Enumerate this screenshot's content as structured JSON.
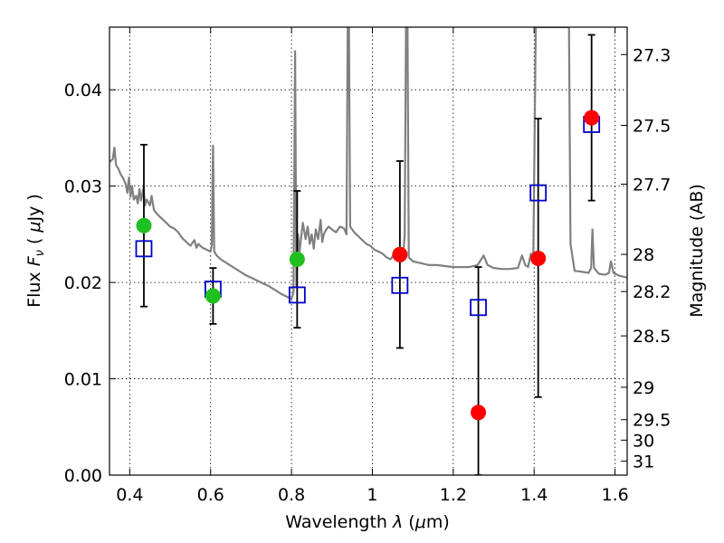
{
  "chart_data": {
    "type": "scatter",
    "xlabel": {
      "text": "Wavelength",
      "symbol": "λ",
      "unit_open": " (",
      "unit_mu": "μ",
      "unit_rest": "m)"
    },
    "ylabel": {
      "text": "Flux",
      "symbol": "F",
      "subscript": "ν",
      "unit_open": "(",
      "unit_mu": "μ",
      "unit_rest": "Jy )"
    },
    "y2label": "Magnitude (AB)",
    "xlim": [
      0.35,
      1.63
    ],
    "ylim": [
      0.0,
      0.0465
    ],
    "grid": true,
    "x_ticks": [
      {
        "value": 0.4,
        "label": "0.4"
      },
      {
        "value": 0.6,
        "label": "0.6"
      },
      {
        "value": 0.8,
        "label": "0.8"
      },
      {
        "value": 1.0,
        "label": "1"
      },
      {
        "value": 1.2,
        "label": "1.2"
      },
      {
        "value": 1.4,
        "label": "1.4"
      },
      {
        "value": 1.6,
        "label": "1.6"
      }
    ],
    "y_ticks": [
      {
        "value": 0.0,
        "label": "0.00"
      },
      {
        "value": 0.01,
        "label": "0.01"
      },
      {
        "value": 0.02,
        "label": "0.02"
      },
      {
        "value": 0.03,
        "label": "0.03"
      },
      {
        "value": 0.04,
        "label": "0.04"
      }
    ],
    "mag_ticks": [
      {
        "value": 27.3,
        "label": "27.3"
      },
      {
        "value": 27.5,
        "label": "27.5"
      },
      {
        "value": 27.7,
        "label": "27.7"
      },
      {
        "value": 28,
        "label": "28"
      },
      {
        "value": 28.2,
        "label": "28.2"
      },
      {
        "value": 28.5,
        "label": "28.5"
      },
      {
        "value": 29,
        "label": "29"
      },
      {
        "value": 29.5,
        "label": "29.5"
      },
      {
        "value": 30,
        "label": "30"
      },
      {
        "value": 31,
        "label": "31"
      }
    ],
    "model_spectrum": {
      "color": "#808080",
      "points": [
        [
          0.35,
          0.0325
        ],
        [
          0.358,
          0.0328
        ],
        [
          0.362,
          0.034
        ],
        [
          0.366,
          0.0322
        ],
        [
          0.372,
          0.0318
        ],
        [
          0.378,
          0.0312
        ],
        [
          0.384,
          0.0308
        ],
        [
          0.39,
          0.0302
        ],
        [
          0.394,
          0.0293
        ],
        [
          0.398,
          0.0309
        ],
        [
          0.402,
          0.0289
        ],
        [
          0.406,
          0.03
        ],
        [
          0.41,
          0.0286
        ],
        [
          0.416,
          0.029
        ],
        [
          0.42,
          0.0282
        ],
        [
          0.424,
          0.0297
        ],
        [
          0.428,
          0.0285
        ],
        [
          0.434,
          0.0298
        ],
        [
          0.438,
          0.028
        ],
        [
          0.442,
          0.0286
        ],
        [
          0.45,
          0.028
        ],
        [
          0.454,
          0.029
        ],
        [
          0.46,
          0.0275
        ],
        [
          0.47,
          0.027
        ],
        [
          0.48,
          0.0266
        ],
        [
          0.49,
          0.0262
        ],
        [
          0.5,
          0.0258
        ],
        [
          0.51,
          0.0256
        ],
        [
          0.52,
          0.0252
        ],
        [
          0.53,
          0.0246
        ],
        [
          0.54,
          0.0242
        ],
        [
          0.55,
          0.0238
        ],
        [
          0.56,
          0.0244
        ],
        [
          0.565,
          0.0236
        ],
        [
          0.57,
          0.024
        ],
        [
          0.58,
          0.0236
        ],
        [
          0.59,
          0.0234
        ],
        [
          0.6,
          0.0232
        ],
        [
          0.603,
          0.024
        ],
        [
          0.606,
          0.0342
        ],
        [
          0.609,
          0.0232
        ],
        [
          0.615,
          0.0228
        ],
        [
          0.625,
          0.0224
        ],
        [
          0.64,
          0.022
        ],
        [
          0.655,
          0.0216
        ],
        [
          0.67,
          0.0212
        ],
        [
          0.685,
          0.0208
        ],
        [
          0.7,
          0.0205
        ],
        [
          0.715,
          0.0202
        ],
        [
          0.73,
          0.0199
        ],
        [
          0.745,
          0.0196
        ],
        [
          0.76,
          0.0192
        ],
        [
          0.775,
          0.0188
        ],
        [
          0.79,
          0.0185
        ],
        [
          0.8,
          0.0183
        ],
        [
          0.805,
          0.019
        ],
        [
          0.809,
          0.044
        ],
        [
          0.812,
          0.0195
        ],
        [
          0.816,
          0.025
        ],
        [
          0.82,
          0.0232
        ],
        [
          0.828,
          0.0262
        ],
        [
          0.835,
          0.0245
        ],
        [
          0.84,
          0.0258
        ],
        [
          0.845,
          0.024
        ],
        [
          0.85,
          0.025
        ],
        [
          0.855,
          0.0235
        ],
        [
          0.86,
          0.0255
        ],
        [
          0.866,
          0.0245
        ],
        [
          0.872,
          0.0265
        ],
        [
          0.876,
          0.0242
        ],
        [
          0.88,
          0.025
        ],
        [
          0.886,
          0.0255
        ],
        [
          0.892,
          0.0258
        ],
        [
          0.9,
          0.0255
        ],
        [
          0.91,
          0.0252
        ],
        [
          0.92,
          0.0258
        ],
        [
          0.93,
          0.0256
        ],
        [
          0.936,
          0.025
        ],
        [
          0.939,
          0.0465
        ],
        [
          0.942,
          0.0465
        ],
        [
          0.945,
          0.0258
        ],
        [
          0.955,
          0.0252
        ],
        [
          0.965,
          0.0248
        ],
        [
          0.975,
          0.0244
        ],
        [
          0.985,
          0.024
        ],
        [
          0.995,
          0.0238
        ],
        [
          1.005,
          0.0234
        ],
        [
          1.015,
          0.0232
        ],
        [
          1.025,
          0.023
        ],
        [
          1.035,
          0.0226
        ],
        [
          1.045,
          0.0224
        ],
        [
          1.055,
          0.023
        ],
        [
          1.065,
          0.0222
        ],
        [
          1.075,
          0.0222
        ],
        [
          1.08,
          0.025
        ],
        [
          1.083,
          0.0465
        ],
        [
          1.087,
          0.0465
        ],
        [
          1.09,
          0.0226
        ],
        [
          1.1,
          0.0222
        ],
        [
          1.12,
          0.022
        ],
        [
          1.14,
          0.0218
        ],
        [
          1.16,
          0.0218
        ],
        [
          1.18,
          0.0217
        ],
        [
          1.2,
          0.0216
        ],
        [
          1.22,
          0.0216
        ],
        [
          1.24,
          0.0216
        ],
        [
          1.26,
          0.0218
        ],
        [
          1.275,
          0.0228
        ],
        [
          1.285,
          0.0218
        ],
        [
          1.3,
          0.0215
        ],
        [
          1.32,
          0.0214
        ],
        [
          1.34,
          0.0214
        ],
        [
          1.36,
          0.0215
        ],
        [
          1.37,
          0.0228
        ],
        [
          1.378,
          0.0218
        ],
        [
          1.385,
          0.0216
        ],
        [
          1.392,
          0.023
        ],
        [
          1.398,
          0.0226
        ],
        [
          1.404,
          0.0465
        ],
        [
          1.418,
          0.0465
        ],
        [
          1.425,
          0.0465
        ],
        [
          1.438,
          0.0465
        ],
        [
          1.446,
          0.0465
        ],
        [
          1.476,
          0.0465
        ],
        [
          1.486,
          0.0465
        ],
        [
          1.49,
          0.024
        ],
        [
          1.5,
          0.0212
        ],
        [
          1.52,
          0.0211
        ],
        [
          1.535,
          0.021
        ],
        [
          1.541,
          0.0215
        ],
        [
          1.544,
          0.0255
        ],
        [
          1.548,
          0.0215
        ],
        [
          1.56,
          0.0209
        ],
        [
          1.575,
          0.0208
        ],
        [
          1.585,
          0.021
        ],
        [
          1.59,
          0.0222
        ],
        [
          1.596,
          0.021
        ],
        [
          1.61,
          0.0207
        ],
        [
          1.63,
          0.0205
        ]
      ]
    },
    "model_photometry": {
      "marker": "open-square",
      "color": "#0000cc",
      "points": [
        {
          "x": 0.435,
          "y": 0.0235
        },
        {
          "x": 0.606,
          "y": 0.0193
        },
        {
          "x": 0.814,
          "y": 0.0187
        },
        {
          "x": 1.068,
          "y": 0.0197
        },
        {
          "x": 1.262,
          "y": 0.0174
        },
        {
          "x": 1.41,
          "y": 0.0293
        },
        {
          "x": 1.542,
          "y": 0.0364
        }
      ]
    },
    "observed_photometry": [
      {
        "x": 0.435,
        "y": 0.0259,
        "err_low": 0.0084,
        "err_high": 0.0084,
        "color": "#1fc01f"
      },
      {
        "x": 0.606,
        "y": 0.0186,
        "err_low": 0.0029,
        "err_high": 0.0029,
        "color": "#1fc01f"
      },
      {
        "x": 0.814,
        "y": 0.0224,
        "err_low": 0.0071,
        "err_high": 0.0071,
        "color": "#1fc01f"
      },
      {
        "x": 1.068,
        "y": 0.0229,
        "err_low": 0.0097,
        "err_high": 0.0097,
        "color": "#ff0000"
      },
      {
        "x": 1.262,
        "y": 0.0065,
        "err_low": 0.0065,
        "err_high": 0.0151,
        "color": "#ff0000"
      },
      {
        "x": 1.41,
        "y": 0.0225,
        "err_low": 0.0144,
        "err_high": 0.0145,
        "color": "#ff0000"
      },
      {
        "x": 1.542,
        "y": 0.0371,
        "err_low": 0.0086,
        "err_high": 0.0086,
        "color": "#ff0000"
      }
    ]
  }
}
